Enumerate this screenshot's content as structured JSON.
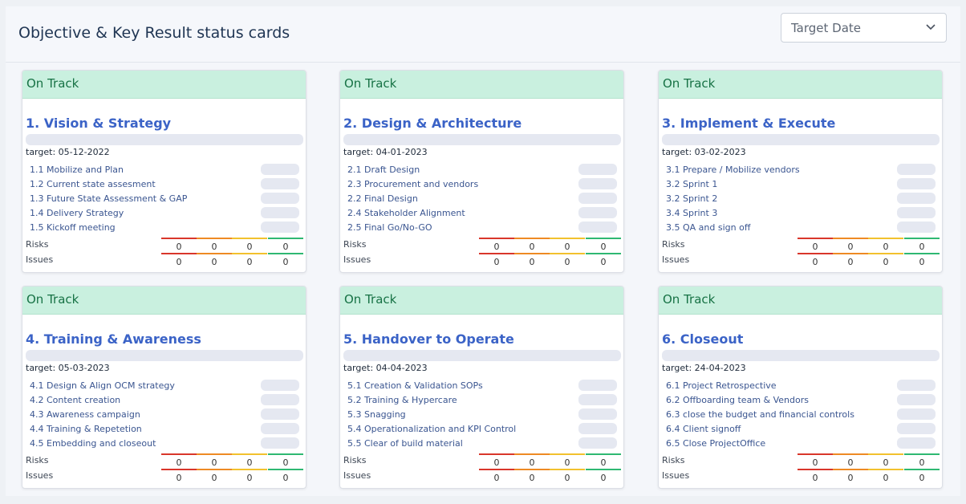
{
  "page": {
    "title": "Objective & Key Result status cards",
    "filter": {
      "selected": "Target Date",
      "icon": "chevron-down-icon"
    }
  },
  "labels": {
    "risks": "Risks",
    "issues": "Issues",
    "target_prefix": "target: "
  },
  "colors": {
    "status_bg": "#c9f0df",
    "status_text": "#177245",
    "title": "#3b63c7",
    "risk_critical": "#d9362b",
    "risk_high": "#ee8a24",
    "risk_medium": "#f2c12e",
    "risk_low": "#2fb872"
  },
  "cards": [
    {
      "status": "On Track",
      "title": "1. Vision & Strategy",
      "target": "target: 05-12-2022",
      "key_results": [
        "1.1 Mobilize and Plan",
        "1.2 Current state assesment",
        "1.3 Future State Assessment & GAP",
        "1.4 Delivery Strategy",
        "1.5 Kickoff meeting"
      ],
      "risks": [
        "0",
        "0",
        "0",
        "0"
      ],
      "issues": [
        "0",
        "0",
        "0",
        "0"
      ]
    },
    {
      "status": "On Track",
      "title": "2. Design & Architecture",
      "target": "target: 04-01-2023",
      "key_results": [
        "2.1 Draft Design",
        "2.3 Procurement and vendors",
        "2.2 Final Design",
        "2.4 Stakeholder Alignment",
        "2.5 Final Go/No-GO"
      ],
      "risks": [
        "0",
        "0",
        "0",
        "0"
      ],
      "issues": [
        "0",
        "0",
        "0",
        "0"
      ]
    },
    {
      "status": "On Track",
      "title": "3. Implement & Execute",
      "target": "target: 03-02-2023",
      "key_results": [
        "3.1 Prepare / Mobilize vendors",
        "3.2 Sprint 1",
        "3.2 Sprint 2",
        "3.4 Sprint 3",
        "3.5 QA and sign off"
      ],
      "risks": [
        "0",
        "0",
        "0",
        "0"
      ],
      "issues": [
        "0",
        "0",
        "0",
        "0"
      ]
    },
    {
      "status": "On Track",
      "title": "4. Training & Awareness",
      "target": "target: 05-03-2023",
      "key_results": [
        "4.1 Design & Align OCM strategy",
        "4.2 Content creation",
        "4.3 Awareness campaign",
        "4.4 Training & Repetetion",
        "4.5 Embedding and closeout"
      ],
      "risks": [
        "0",
        "0",
        "0",
        "0"
      ],
      "issues": [
        "0",
        "0",
        "0",
        "0"
      ]
    },
    {
      "status": "On Track",
      "title": "5. Handover to Operate",
      "target": "target: 04-04-2023",
      "key_results": [
        "5.1 Creation & Validation SOPs",
        "5.2 Training & Hypercare",
        "5.3 Snagging",
        "5.4 Operationalization and KPI Control",
        "5.5 Clear of build material"
      ],
      "risks": [
        "0",
        "0",
        "0",
        "0"
      ],
      "issues": [
        "0",
        "0",
        "0",
        "0"
      ]
    },
    {
      "status": "On Track",
      "title": "6. Closeout",
      "target": "target: 24-04-2023",
      "key_results": [
        "6.1 Project Retrospective",
        "6.2 Offboarding team & Vendors",
        "6.3 close the budget and financial controls",
        "6.4 Client signoff",
        "6.5 Close ProjectOffice"
      ],
      "risks": [
        "0",
        "0",
        "0",
        "0"
      ],
      "issues": [
        "0",
        "0",
        "0",
        "0"
      ]
    }
  ]
}
